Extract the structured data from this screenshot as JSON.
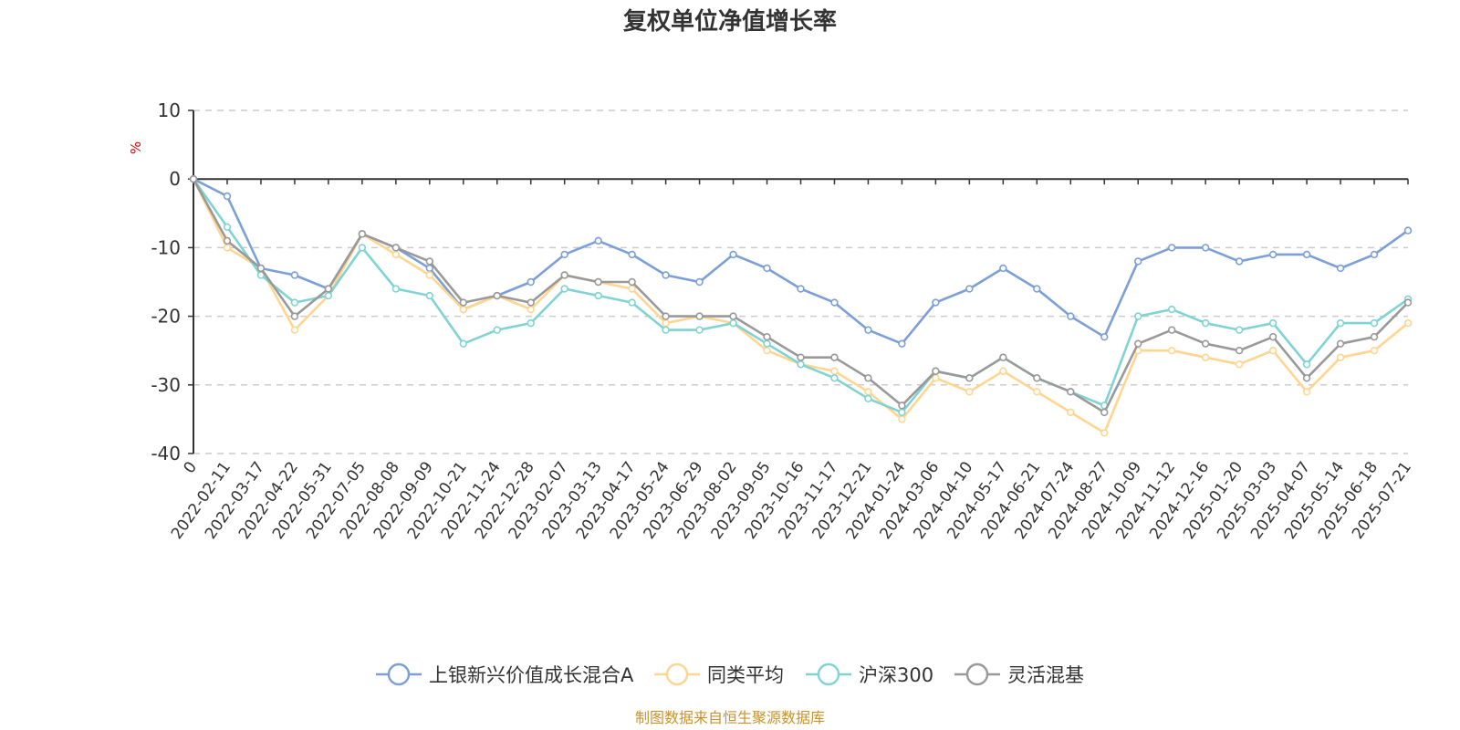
{
  "chart_data": {
    "type": "line",
    "title": "复权单位净值增长率",
    "ylabel": "%",
    "ylim": [
      -40,
      10
    ],
    "yticks": [
      10,
      0,
      -10,
      -20,
      -30,
      -40
    ],
    "grid": true,
    "legend_position": "bottom",
    "x_tick_labels": [
      "0",
      "2022-02-11",
      "2022-03-17",
      "2022-04-22",
      "2022-05-31",
      "2022-07-05",
      "2022-08-08",
      "2022-09-09",
      "2022-10-21",
      "2022-11-24",
      "2022-12-28",
      "2023-02-07",
      "2023-03-13",
      "2023-04-17",
      "2023-05-24",
      "2023-06-29",
      "2023-08-02",
      "2023-09-05",
      "2023-10-16",
      "2023-11-17",
      "2023-12-21",
      "2024-01-24",
      "2024-03-06",
      "2024-04-10",
      "2024-05-17",
      "2024-06-21",
      "2024-07-24",
      "2024-08-27",
      "2024-10-09",
      "2024-11-12",
      "2024-12-16",
      "2025-01-20",
      "2025-03-03",
      "2025-04-07",
      "2025-05-14",
      "2025-06-18",
      "2025-07-21"
    ],
    "x": [
      "0",
      "2022-02-11",
      "2022-03-17",
      "2022-04-22",
      "2022-05-31",
      "2022-07-05",
      "2022-08-08",
      "2022-09-09",
      "2022-10-21",
      "2022-11-24",
      "2022-12-28",
      "2023-02-07",
      "2023-03-13",
      "2023-04-17",
      "2023-05-24",
      "2023-06-29",
      "2023-08-02",
      "2023-09-05",
      "2023-10-16",
      "2023-11-17",
      "2023-12-21",
      "2024-01-24",
      "2024-03-06",
      "2024-04-10",
      "2024-05-17",
      "2024-06-21",
      "2024-07-24",
      "2024-08-27",
      "2024-10-09",
      "2024-11-12",
      "2024-12-16",
      "2025-01-20",
      "2025-03-03",
      "2025-04-07",
      "2025-05-14",
      "2025-06-18",
      "2025-07-21"
    ],
    "series": [
      {
        "name": "上银新兴价值成长混合A",
        "color": "#7b9fd6",
        "values": [
          0,
          -2.5,
          -13,
          -14,
          -16,
          -8,
          -10,
          -13,
          -19,
          -17,
          -15,
          -11,
          -9,
          -11,
          -14,
          -15,
          -11,
          -13,
          -16,
          -18,
          -22,
          -24,
          -18,
          -16,
          -13,
          -16,
          -20,
          -23,
          -12,
          -10,
          -10,
          -12,
          -11,
          -11,
          -13,
          -11,
          -7.5
        ]
      },
      {
        "name": "同类平均",
        "color": "#ffd58f",
        "values": [
          0,
          -10,
          -13,
          -22,
          -17,
          -8,
          -11,
          -14,
          -19,
          -17,
          -19,
          -14,
          -15,
          -16,
          -21,
          -20,
          -21,
          -25,
          -27,
          -28,
          -31,
          -35,
          -29,
          -31,
          -28,
          -31,
          -34,
          -37,
          -25,
          -25,
          -26,
          -27,
          -25,
          -31,
          -26,
          -25,
          -21
        ]
      },
      {
        "name": "沪深300",
        "color": "#7fd3d3",
        "values": [
          0,
          -7,
          -14,
          -18,
          -17,
          -10,
          -16,
          -17,
          -24,
          -22,
          -21,
          -16,
          -17,
          -18,
          -22,
          -22,
          -21,
          -24,
          -27,
          -29,
          -32,
          -34,
          -28,
          -29,
          -26,
          -29,
          -31,
          -33,
          -20,
          -19,
          -21,
          -22,
          -21,
          -27,
          -21,
          -21,
          -17.5
        ]
      },
      {
        "name": "灵活混基",
        "color": "#999999",
        "values": [
          0,
          -9,
          -13,
          -20,
          -16,
          -8,
          -10,
          -12,
          -18,
          -17,
          -18,
          -14,
          -15,
          -15,
          -20,
          -20,
          -20,
          -23,
          -26,
          -26,
          -29,
          -33,
          -28,
          -29,
          -26,
          -29,
          -31,
          -34,
          -24,
          -22,
          -24,
          -25,
          -23,
          -29,
          -24,
          -23,
          -18
        ]
      }
    ]
  },
  "footer": {
    "source": "制图数据来自恒生聚源数据库"
  }
}
